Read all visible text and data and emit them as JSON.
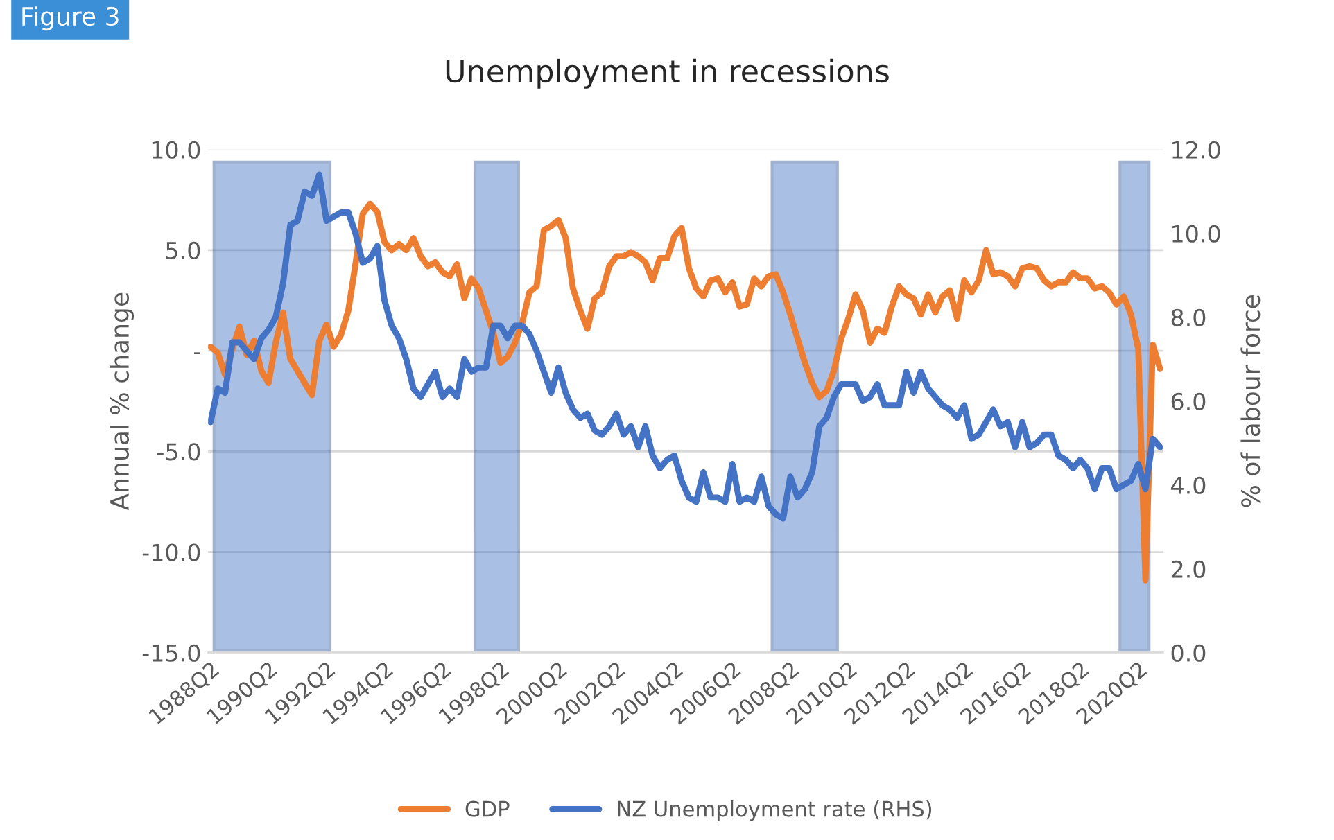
{
  "chart_data": {
    "type": "line",
    "title": "Unemployment in recessions",
    "xlabel": null,
    "ylabel": "Annual % change",
    "y2label": "% of labour force",
    "annotations": [
      "Figure 3"
    ],
    "x": [
      "1988-04",
      "1988-07",
      "1988-10",
      "1989-01",
      "1989-04",
      "1989-07",
      "1989-10",
      "1990-01",
      "1990-04",
      "1990-07",
      "1990-10",
      "1991-01",
      "1991-04",
      "1991-07",
      "1991-10",
      "1992-01",
      "1992-04",
      "1992-07",
      "1992-10",
      "1993-01",
      "1993-04",
      "1993-07",
      "1993-10",
      "1994-01",
      "1994-04",
      "1994-07",
      "1994-10",
      "1995-01",
      "1995-04",
      "1995-07",
      "1995-10",
      "1996-01",
      "1996-04",
      "1996-07",
      "1996-10",
      "1997-01",
      "1997-04",
      "1997-07",
      "1997-10",
      "1998-01",
      "1998-04",
      "1998-07",
      "1998-10",
      "1999-01",
      "1999-04",
      "1999-07",
      "1999-10",
      "2000-01",
      "2000-04",
      "2000-07",
      "2000-10",
      "2001-01",
      "2001-04",
      "2001-07",
      "2001-10",
      "2002-01",
      "2002-04",
      "2002-07",
      "2002-10",
      "2003-01",
      "2003-04",
      "2003-07",
      "2003-10",
      "2004-01",
      "2004-04",
      "2004-07",
      "2004-10",
      "2005-01",
      "2005-04",
      "2005-07",
      "2005-10",
      "2006-01",
      "2006-04",
      "2006-07",
      "2006-10",
      "2007-01",
      "2007-04",
      "2007-07",
      "2007-10",
      "2008-01",
      "2008-04",
      "2008-07",
      "2008-10",
      "2009-01",
      "2009-04",
      "2009-07",
      "2009-10",
      "2010-01",
      "2010-04",
      "2010-07",
      "2010-10",
      "2011-01",
      "2011-04",
      "2011-07",
      "2011-10",
      "2012-01",
      "2012-04",
      "2012-07",
      "2012-10",
      "2013-01",
      "2013-04",
      "2013-07",
      "2013-10",
      "2014-01",
      "2014-04",
      "2014-07",
      "2014-10",
      "2015-01",
      "2015-04",
      "2015-07",
      "2015-10",
      "2016-01",
      "2016-04",
      "2016-07",
      "2016-10",
      "2017-01",
      "2017-04",
      "2017-07",
      "2017-10",
      "2018-01",
      "2018-04",
      "2018-07",
      "2018-10",
      "2019-01",
      "2019-04",
      "2019-07",
      "2019-10",
      "2020-01",
      "2020-04",
      "2020-07",
      "2020-10",
      "2021-01"
    ],
    "xlim": [
      "1988-03-01",
      "2021-02-10"
    ],
    "xticks": [
      {
        "value": "1988-04",
        "label": "1988Q2"
      },
      {
        "value": "1990-04",
        "label": "1990Q2"
      },
      {
        "value": "1992-04",
        "label": "1992Q2"
      },
      {
        "value": "1994-04",
        "label": "1994Q2"
      },
      {
        "value": "1996-04",
        "label": "1996Q2"
      },
      {
        "value": "1998-04",
        "label": "1998Q2"
      },
      {
        "value": "2000-04",
        "label": "2000Q2"
      },
      {
        "value": "2002-04",
        "label": "2002Q2"
      },
      {
        "value": "2004-04",
        "label": "2004Q2"
      },
      {
        "value": "2006-04",
        "label": "2006Q2"
      },
      {
        "value": "2008-04",
        "label": "2008Q2"
      },
      {
        "value": "2010-04",
        "label": "2010Q2"
      },
      {
        "value": "2012-04",
        "label": "2012Q2"
      },
      {
        "value": "2014-04",
        "label": "2014Q2"
      },
      {
        "value": "2016-04",
        "label": "2016Q2"
      },
      {
        "value": "2018-04",
        "label": "2018Q2"
      },
      {
        "value": "2020-04",
        "label": "2020Q2"
      }
    ],
    "ylim": [
      -15,
      10
    ],
    "yticks": [
      {
        "value": 10,
        "label": "10.0"
      },
      {
        "value": 5,
        "label": "5.0"
      },
      {
        "value": 0,
        "label": "-"
      },
      {
        "value": -5,
        "label": "-5.0"
      },
      {
        "value": -10,
        "label": "-10.0"
      },
      {
        "value": -15,
        "label": "-15.0"
      }
    ],
    "y2lim": [
      0,
      12
    ],
    "y2ticks": [
      {
        "value": 0,
        "label": "0.0"
      },
      {
        "value": 2,
        "label": "2.0"
      },
      {
        "value": 4,
        "label": "4.0"
      },
      {
        "value": 6,
        "label": "6.0"
      },
      {
        "value": 8,
        "label": "8.0"
      },
      {
        "value": 10,
        "label": "10.0"
      },
      {
        "value": 12,
        "label": "12.0"
      }
    ],
    "series": [
      {
        "name": "GDP",
        "color": "#ed7d31",
        "values": [
          0.2,
          -0.1,
          -1.2,
          0.1,
          1.2,
          -0.2,
          0.5,
          -1.0,
          -1.6,
          0.4,
          1.9,
          -0.4,
          -1.0,
          -1.6,
          -2.2,
          0.5,
          1.3,
          0.2,
          0.8,
          2.0,
          4.3,
          6.8,
          7.3,
          6.9,
          5.4,
          5.0,
          5.3,
          5.0,
          5.6,
          4.7,
          4.2,
          4.4,
          3.9,
          3.7,
          4.3,
          2.6,
          3.6,
          3.1,
          2.0,
          0.9,
          -0.6,
          -0.3,
          0.4,
          1.4,
          2.9,
          3.2,
          6.0,
          6.2,
          6.5,
          5.6,
          3.1,
          2.0,
          1.1,
          2.6,
          2.9,
          4.2,
          4.7,
          4.7,
          4.9,
          4.7,
          4.4,
          3.5,
          4.6,
          4.6,
          5.7,
          6.1,
          4.1,
          3.1,
          2.7,
          3.5,
          3.6,
          2.9,
          3.4,
          2.2,
          2.3,
          3.6,
          3.2,
          3.7,
          3.8,
          2.9,
          1.8,
          0.6,
          -0.6,
          -1.6,
          -2.3,
          -2.0,
          -1.0,
          0.6,
          1.6,
          2.8,
          2.0,
          0.4,
          1.1,
          0.9,
          2.2,
          3.2,
          2.8,
          2.6,
          1.8,
          2.8,
          1.9,
          2.7,
          3.0,
          1.6,
          3.5,
          2.9,
          3.5,
          5.0,
          3.8,
          3.9,
          3.7,
          3.2,
          4.1,
          4.2,
          4.1,
          3.5,
          3.2,
          3.4,
          3.4,
          3.9,
          3.6,
          3.6,
          3.1,
          3.2,
          2.9,
          2.3,
          2.7,
          1.8,
          0.1,
          -11.4,
          0.3,
          -0.9
        ]
      },
      {
        "name": "NZ Unemployment rate (RHS)",
        "color": "#4472c4",
        "axis": "y2",
        "values": [
          5.5,
          6.3,
          6.2,
          7.4,
          7.4,
          7.2,
          7.0,
          7.5,
          7.7,
          8.0,
          8.8,
          10.2,
          10.3,
          11.0,
          10.9,
          11.4,
          10.3,
          10.4,
          10.5,
          10.5,
          10.0,
          9.3,
          9.4,
          9.7,
          8.4,
          7.8,
          7.5,
          7.0,
          6.3,
          6.1,
          6.4,
          6.7,
          6.1,
          6.3,
          6.1,
          7.0,
          6.7,
          6.8,
          6.8,
          7.8,
          7.8,
          7.5,
          7.8,
          7.8,
          7.6,
          7.2,
          6.7,
          6.2,
          6.8,
          6.2,
          5.8,
          5.6,
          5.7,
          5.3,
          5.2,
          5.4,
          5.7,
          5.2,
          5.4,
          4.9,
          5.4,
          4.7,
          4.4,
          4.6,
          4.7,
          4.1,
          3.7,
          3.6,
          4.3,
          3.7,
          3.7,
          3.6,
          4.5,
          3.6,
          3.7,
          3.6,
          4.2,
          3.5,
          3.3,
          3.2,
          4.2,
          3.7,
          3.9,
          4.3,
          5.4,
          5.6,
          6.1,
          6.4,
          6.4,
          6.4,
          6.0,
          6.1,
          6.4,
          5.9,
          5.9,
          5.9,
          6.7,
          6.2,
          6.7,
          6.3,
          6.1,
          5.9,
          5.8,
          5.6,
          5.9,
          5.1,
          5.2,
          5.5,
          5.8,
          5.4,
          5.5,
          4.9,
          5.5,
          4.9,
          5.0,
          5.2,
          5.2,
          4.7,
          4.6,
          4.4,
          4.6,
          4.4,
          3.9,
          4.4,
          4.4,
          3.9,
          4.0,
          4.1,
          4.5,
          3.9,
          5.1,
          4.9
        ]
      }
    ],
    "bands": [
      {
        "axis": "x",
        "from": "1988-05-15",
        "to": "1992-05-15",
        "color": "#4472c4"
      },
      {
        "axis": "x",
        "from": "1997-05-15",
        "to": "1998-11-15",
        "color": "#4472c4"
      },
      {
        "axis": "x",
        "from": "2007-08-15",
        "to": "2009-11-15",
        "color": "#4472c4"
      },
      {
        "axis": "x",
        "from": "2019-08-15",
        "to": "2020-08-15",
        "color": "#4472c4"
      }
    ],
    "grid": "y",
    "legend": "bottom",
    "line_style": "solid",
    "marker": "none"
  }
}
